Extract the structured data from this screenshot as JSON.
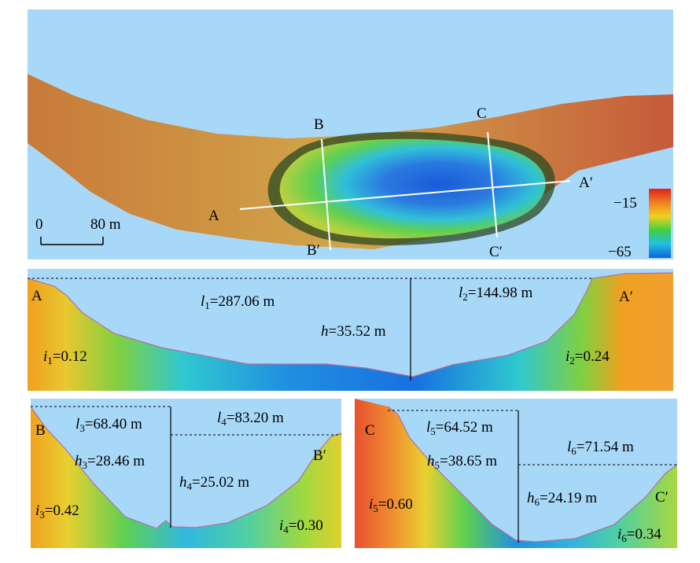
{
  "map": {
    "section_labels": {
      "A": "A",
      "A_prime": "A′",
      "B": "B",
      "B_prime": "B′",
      "C": "C",
      "C_prime": "C′"
    },
    "scale_bar": {
      "start": "0",
      "end": "80 m"
    },
    "color_legend": {
      "max": "−15",
      "min": "−65",
      "colors": [
        "#e02020",
        "#f08020",
        "#f0d020",
        "#40d040",
        "#20c0e0",
        "#1060e0"
      ]
    },
    "background_color": "#a8d8f8"
  },
  "profiles": {
    "AA": {
      "start_label": "A",
      "end_label": "A′",
      "l1": {
        "var": "l",
        "sub": "1",
        "value": "=287.06 m"
      },
      "l2": {
        "var": "l",
        "sub": "2",
        "value": "=144.98 m"
      },
      "h": {
        "var": "h",
        "value": "=35.52 m"
      },
      "i1": {
        "var": "i",
        "sub": "1",
        "value": "=0.12"
      },
      "i2": {
        "var": "i",
        "sub": "2",
        "value": "=0.24"
      }
    },
    "BB": {
      "start_label": "B",
      "end_label": "B′",
      "l3": {
        "var": "l",
        "sub": "3",
        "value": "=68.40 m"
      },
      "l4": {
        "var": "l",
        "sub": "4",
        "value": "=83.20 m"
      },
      "h3": {
        "var": "h",
        "sub": "3",
        "value": "=28.46 m"
      },
      "h4": {
        "var": "h",
        "sub": "4",
        "value": "=25.02 m"
      },
      "i3": {
        "var": "i",
        "sub": "3",
        "value": "=0.42"
      },
      "i4": {
        "var": "i",
        "sub": "4",
        "value": "=0.30"
      }
    },
    "CC": {
      "start_label": "C",
      "end_label": "C′",
      "l5": {
        "var": "l",
        "sub": "5",
        "value": "=64.52 m"
      },
      "l6": {
        "var": "l",
        "sub": "6",
        "value": "=71.54 m"
      },
      "h5": {
        "var": "h",
        "sub": "5",
        "value": "=38.65 m"
      },
      "h6": {
        "var": "h",
        "sub": "6",
        "value": "=24.19 m"
      },
      "i5": {
        "var": "i",
        "sub": "5",
        "value": "=0.60"
      },
      "i6": {
        "var": "i",
        "sub": "6",
        "value": "=0.34"
      }
    }
  }
}
